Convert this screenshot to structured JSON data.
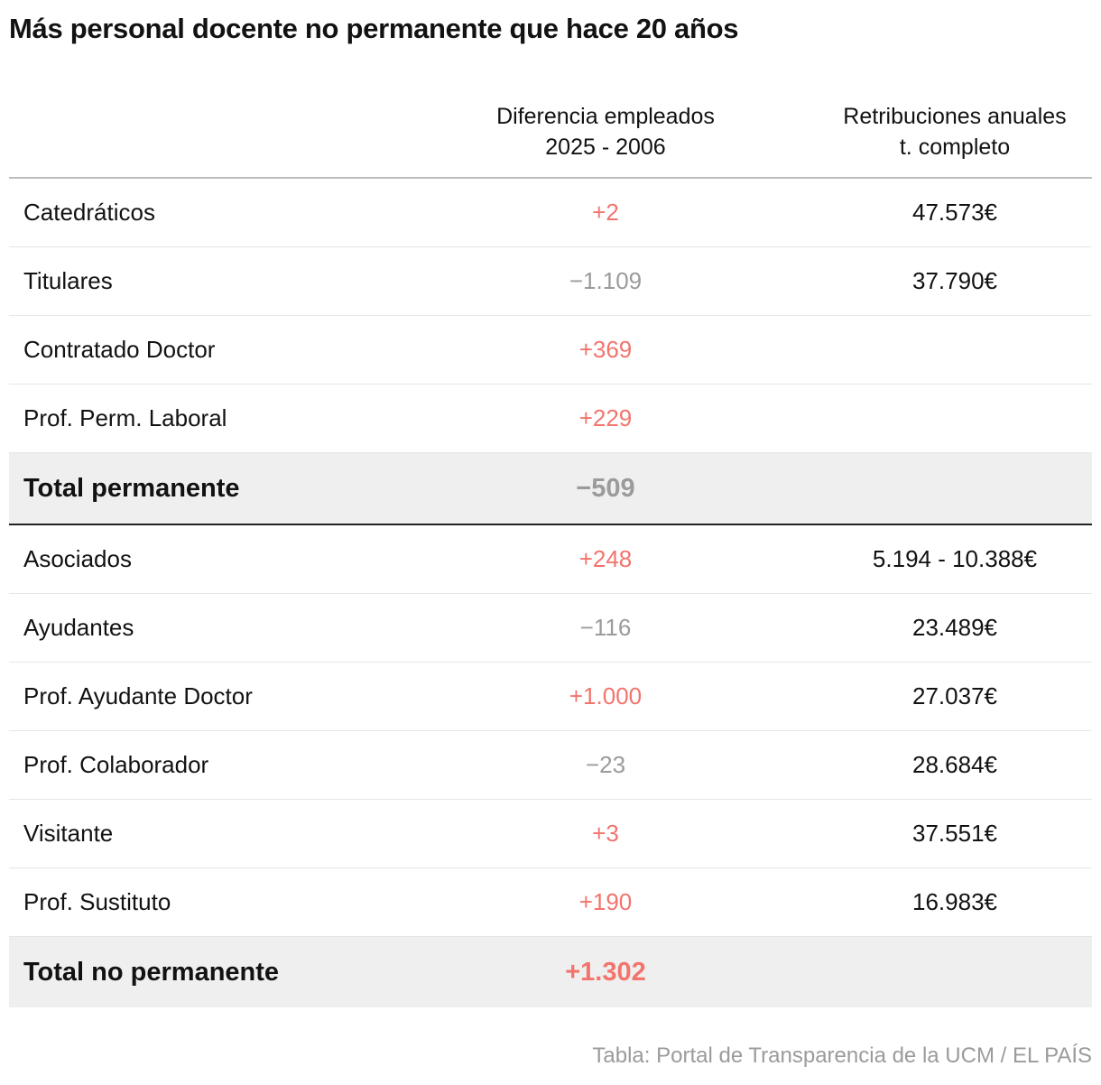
{
  "title": "Más personal docente no permanente que hace 20 años",
  "columns": {
    "col2_line1": "Diferencia empleados",
    "col2_line2": "2025 - 2006",
    "col3_line1": "Retribuciones anuales",
    "col3_line2": "t. completo"
  },
  "colors": {
    "positive": "#f2746d",
    "negative": "#9b9b9b",
    "total_bg": "#efefef"
  },
  "chart_data": {
    "type": "table",
    "title": "Más personal docente no permanente que hace 20 años",
    "columns": [
      "",
      "Diferencia empleados 2025 - 2006",
      "Retribuciones anuales t. completo"
    ],
    "rows": [
      {
        "label": "Catedráticos",
        "diff": "+2",
        "sign": "pos",
        "salary": "47.573€"
      },
      {
        "label": "Titulares",
        "diff": "−1.109",
        "sign": "neg",
        "salary": "37.790€"
      },
      {
        "label": "Contratado Doctor",
        "diff": "+369",
        "sign": "pos",
        "salary": ""
      },
      {
        "label": "Prof. Perm. Laboral",
        "diff": "+229",
        "sign": "pos",
        "salary": ""
      },
      {
        "label": "Total permanente",
        "diff": "−509",
        "sign": "neg",
        "salary": "",
        "total": true
      },
      {
        "label": "Asociados",
        "diff": "+248",
        "sign": "pos",
        "salary": "5.194 - 10.388€"
      },
      {
        "label": "Ayudantes",
        "diff": "−116",
        "sign": "neg",
        "salary": "23.489€"
      },
      {
        "label": "Prof. Ayudante Doctor",
        "diff": "+1.000",
        "sign": "pos",
        "salary": "27.037€"
      },
      {
        "label": "Prof. Colaborador",
        "diff": "−23",
        "sign": "neg",
        "salary": "28.684€"
      },
      {
        "label": "Visitante",
        "diff": "+3",
        "sign": "pos",
        "salary": "37.551€"
      },
      {
        "label": "Prof. Sustituto",
        "diff": "+190",
        "sign": "pos",
        "salary": "16.983€"
      },
      {
        "label": "Total no permanente",
        "diff": "+1.302",
        "sign": "pos",
        "salary": "",
        "total": true
      }
    ]
  },
  "footer": "Tabla: Portal de Transparencia de la UCM / EL PAÍS"
}
